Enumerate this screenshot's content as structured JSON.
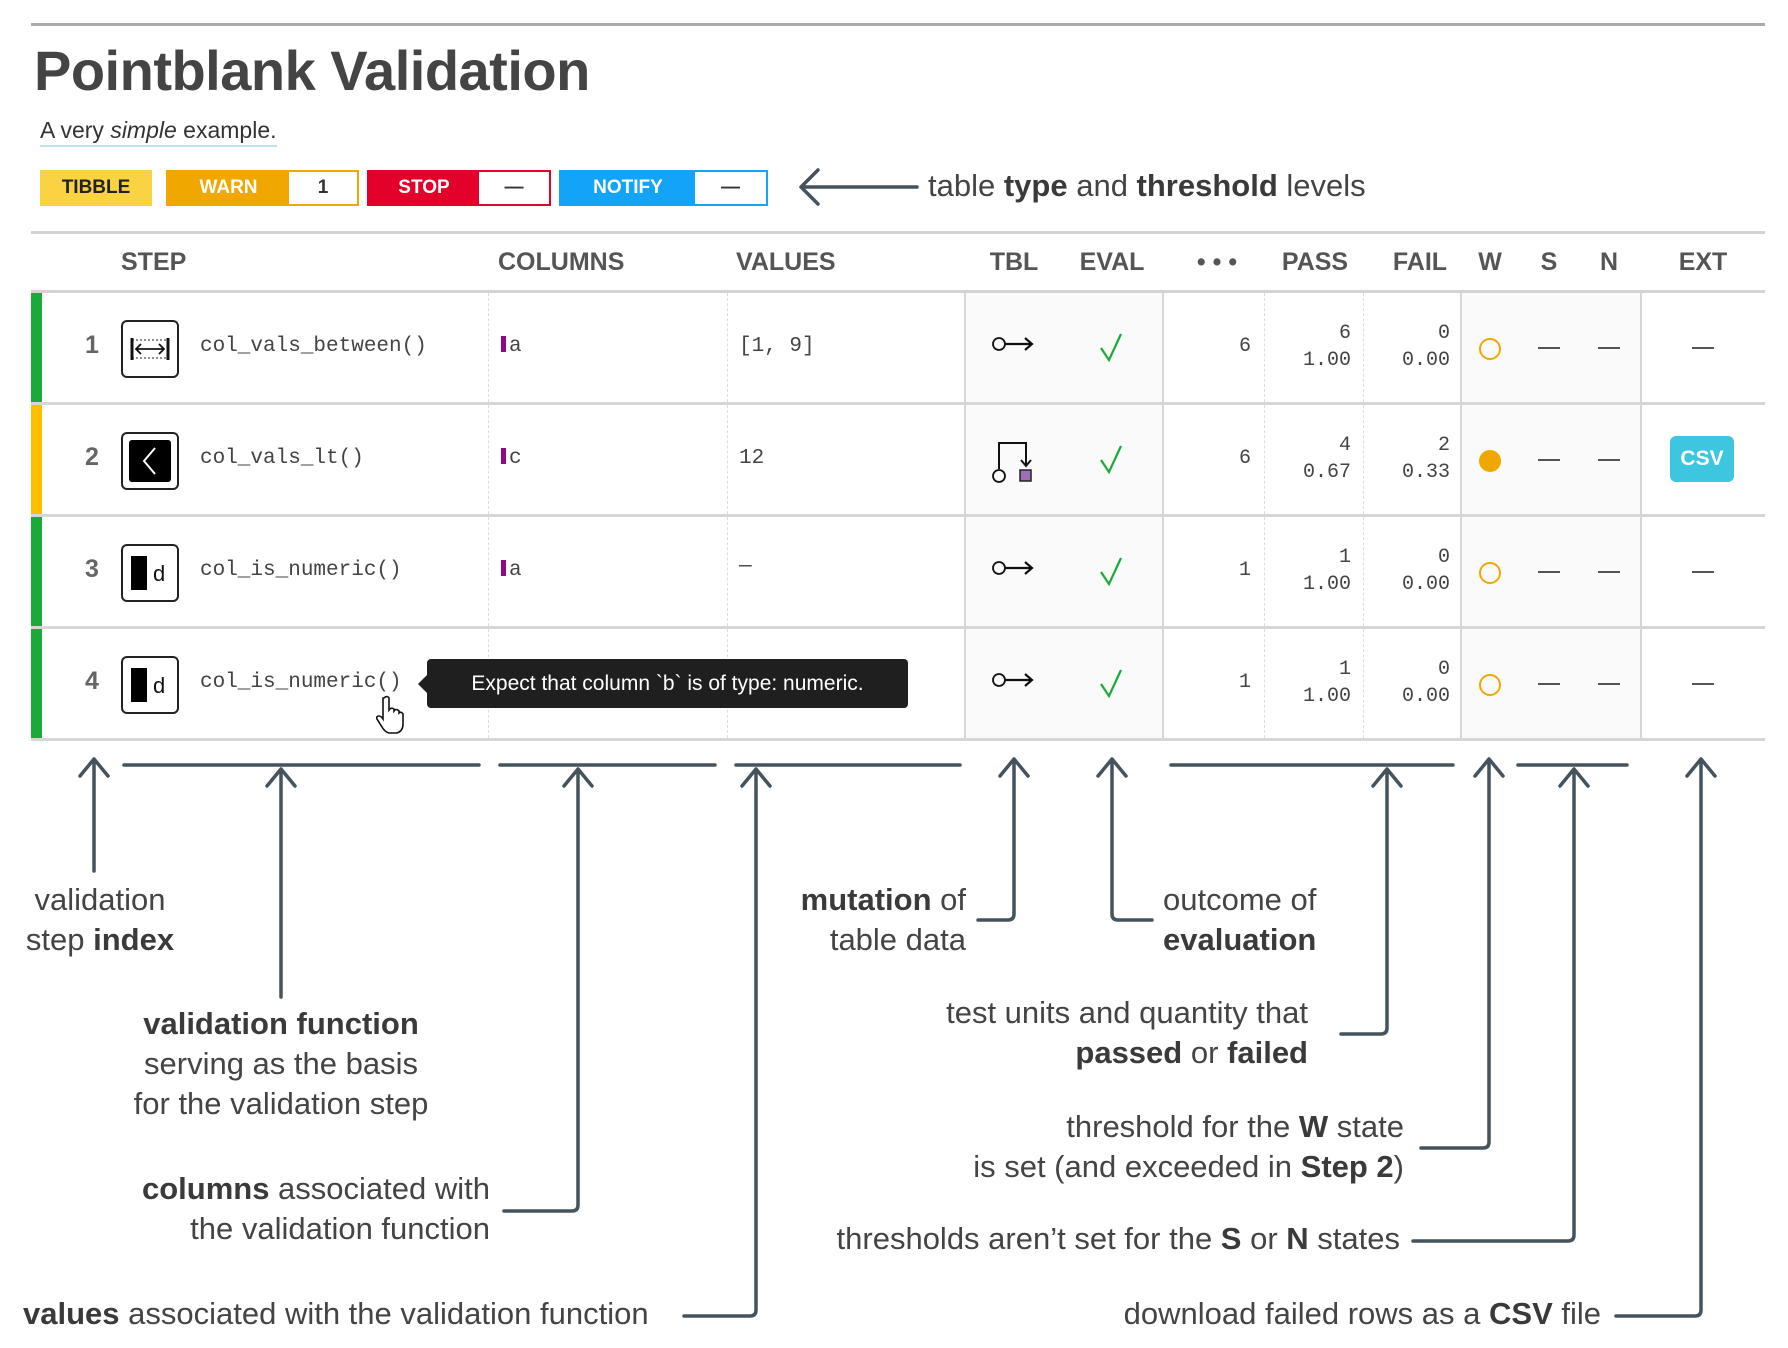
{
  "header": {
    "title": "Pointblank Validation",
    "subtitle_pre": "A very ",
    "subtitle_em": "simple",
    "subtitle_post": " example."
  },
  "badges": {
    "table_type": "TIBBLE",
    "warn_label": "WARN",
    "warn_value": "1",
    "stop_label": "STOP",
    "stop_value": "—",
    "notify_label": "NOTIFY",
    "notify_value": "—",
    "colors": {
      "tibble": "#F9D342",
      "warn": "#F0A800",
      "stop": "#E3002B",
      "notify": "#13A3F7"
    }
  },
  "columns": [
    "STEP",
    "COLUMNS",
    "VALUES",
    "TBL",
    "EVAL",
    "• • •",
    "PASS",
    "FAIL",
    "W",
    "S",
    "N",
    "EXT"
  ],
  "rows": [
    {
      "index": "1",
      "function": "col_vals_between()",
      "icon": "between-icon",
      "column": "a",
      "values": "[1, 9]",
      "tbl": "no-mutation-icon",
      "eval": "check-icon",
      "units": "6",
      "pass_n": "6",
      "pass_f": "1.00",
      "fail_n": "0",
      "fail_f": "0.00",
      "w": "warn-not-exceeded",
      "s": "—",
      "n": "—",
      "ext": "—",
      "status_color": "#1AAA3A"
    },
    {
      "index": "2",
      "function": "col_vals_lt()",
      "icon": "less-than-icon",
      "column": "c",
      "values": "12",
      "tbl": "mutation-icon",
      "eval": "check-icon",
      "units": "6",
      "pass_n": "4",
      "pass_f": "0.67",
      "fail_n": "2",
      "fail_f": "0.33",
      "w": "warn-exceeded",
      "s": "—",
      "n": "—",
      "ext": "CSV",
      "status_color": "#FFBF00"
    },
    {
      "index": "3",
      "function": "col_is_numeric()",
      "icon": "numeric-type-icon",
      "column": "a",
      "values": "—",
      "tbl": "no-mutation-icon",
      "eval": "check-icon",
      "units": "1",
      "pass_n": "1",
      "pass_f": "1.00",
      "fail_n": "0",
      "fail_f": "0.00",
      "w": "warn-not-exceeded",
      "s": "—",
      "n": "—",
      "ext": "—",
      "status_color": "#1AAA3A"
    },
    {
      "index": "4",
      "function": "col_is_numeric()",
      "icon": "numeric-type-icon",
      "column": "",
      "values": "",
      "tbl": "no-mutation-icon",
      "eval": "check-icon",
      "units": "1",
      "pass_n": "1",
      "pass_f": "1.00",
      "fail_n": "0",
      "fail_f": "0.00",
      "w": "warn-not-exceeded",
      "s": "—",
      "n": "—",
      "ext": "—",
      "status_color": "#1AAA3A"
    }
  ],
  "tooltip": "Expect that column `b` is of type: numeric.",
  "annotations": {
    "type_threshold": {
      "a": "table ",
      "b1": "type",
      "c": " and ",
      "b2": "threshold",
      "d": " levels"
    },
    "step_index": {
      "l1": "validation",
      "l2a": "step ",
      "l2b": "index"
    },
    "function": {
      "l1": "validation function",
      "l2": "serving as the basis",
      "l3": "for the validation step"
    },
    "columns": {
      "b": "columns",
      "l1": " associated with",
      "l2": "the validation function"
    },
    "values": {
      "b": "values",
      "l1": " associated with the validation function"
    },
    "mutation": {
      "b": "mutation",
      "l1": " of",
      "l2": "table data"
    },
    "outcome": {
      "l1": "outcome of",
      "b": "evaluation"
    },
    "units": {
      "l1": "test units and quantity that",
      "b1": "passed",
      "m": " or ",
      "b2": "failed"
    },
    "w_state": {
      "l1a": "threshold for the ",
      "b1": "W",
      "l1b": " state",
      "l2a": "is set (and exceeded in ",
      "b2": "Step 2",
      "l2b": ")"
    },
    "sn_state": {
      "a": "thresholds aren’t set for the ",
      "b1": "S",
      "m": " or ",
      "b2": "N",
      "c": " states"
    },
    "csv": {
      "a": "download failed rows as a ",
      "b": "CSV",
      "c": " file"
    }
  },
  "colors": {
    "annotation_line": "#44535C",
    "pass_check": "#1AAA3A",
    "warn": "#F0A800",
    "csv_button": "#3EC6E0",
    "column_mark": "#8B0A8B"
  }
}
